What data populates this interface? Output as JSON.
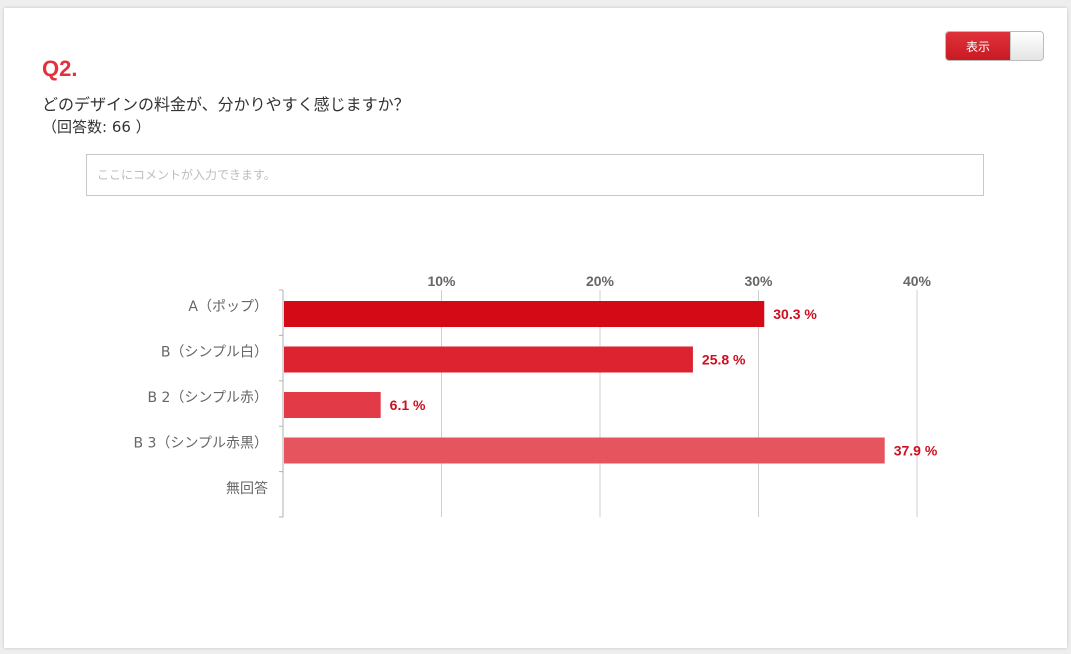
{
  "question": {
    "number": "Q2.",
    "text": "どのデザインの料金が、分かりやすく感じますか？",
    "count": "（回答数: 66 ）"
  },
  "toggle": {
    "label": "表示",
    "state": "on"
  },
  "comment": {
    "placeholder": "ここにコメントが入力できます。",
    "value": ""
  },
  "chart_data": {
    "type": "bar",
    "orientation": "horizontal",
    "categories": [
      "A（ポップ）",
      "B（シンプル白）",
      "B 2（シンプル赤）",
      "B 3（シンプル赤黒）",
      "無回答"
    ],
    "values": [
      30.3,
      25.8,
      6.1,
      37.9,
      null
    ],
    "value_labels": [
      "30.3 %",
      "25.8 %",
      "6.1 %",
      "37.9 %",
      ""
    ],
    "xticks": [
      10,
      20,
      30,
      40
    ],
    "xtick_labels": [
      "10%",
      "20%",
      "30%",
      "40%"
    ],
    "xlim": [
      0,
      40
    ],
    "grid": true,
    "colors": [
      "#d40a17",
      "#dd2230",
      "#e23a46",
      "#e6545e"
    ]
  }
}
